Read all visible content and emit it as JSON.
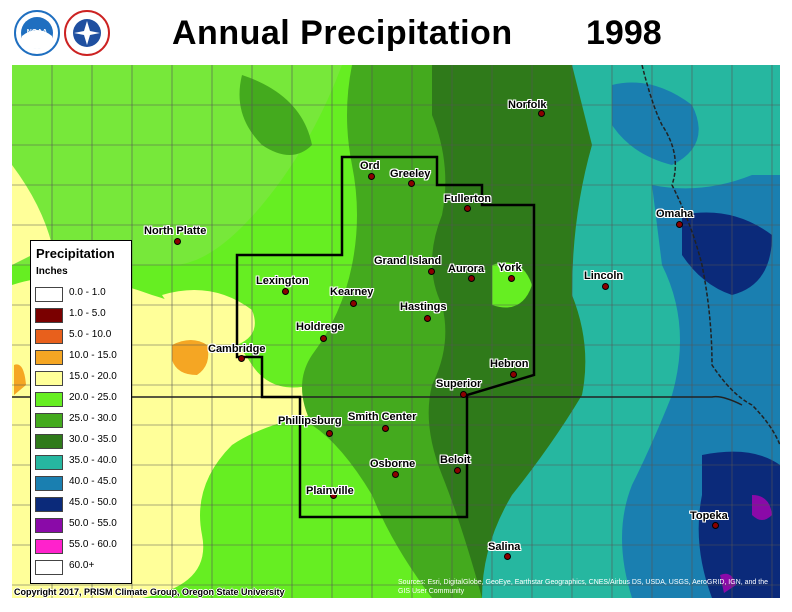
{
  "header": {
    "title": "Annual Precipitation",
    "year": "1998",
    "logos": [
      {
        "name": "noaa-logo",
        "text": "NOAA",
        "color": "#1f6fc0"
      },
      {
        "name": "nws-logo",
        "text": "NATIONAL WEATHER SERVICE",
        "color": "#cc2222"
      }
    ]
  },
  "legend": {
    "title": "Precipitation",
    "units": "Inches",
    "items": [
      {
        "label": "0.0 - 1.0",
        "color": "#ffffff"
      },
      {
        "label": "1.0 - 5.0",
        "color": "#7a0000"
      },
      {
        "label": "5.0 - 10.0",
        "color": "#e8601c"
      },
      {
        "label": "10.0 - 15.0",
        "color": "#f5a623"
      },
      {
        "label": "15.0 - 20.0",
        "color": "#ffff99"
      },
      {
        "label": "20.0 - 25.0",
        "color": "#66ee22"
      },
      {
        "label": "25.0 - 30.0",
        "color": "#44aa1e"
      },
      {
        "label": "30.0 - 35.0",
        "color": "#2f7a1a"
      },
      {
        "label": "35.0 - 40.0",
        "color": "#26b7a0"
      },
      {
        "label": "40.0 - 45.0",
        "color": "#1a7fb0"
      },
      {
        "label": "45.0 - 50.0",
        "color": "#0b2a7a"
      },
      {
        "label": "50.0 - 55.0",
        "color": "#8a0aa8"
      },
      {
        "label": "55.0 - 60.0",
        "color": "#ff22cc"
      },
      {
        "label": "60.0+",
        "color": "#ffffff"
      }
    ]
  },
  "cities": [
    {
      "name": "Norfolk"
    },
    {
      "name": "Ord"
    },
    {
      "name": "Greeley"
    },
    {
      "name": "Fullerton"
    },
    {
      "name": "Omaha"
    },
    {
      "name": "North Platte"
    },
    {
      "name": "Grand Island"
    },
    {
      "name": "Aurora"
    },
    {
      "name": "York"
    },
    {
      "name": "Lincoln"
    },
    {
      "name": "Lexington"
    },
    {
      "name": "Kearney"
    },
    {
      "name": "Hastings"
    },
    {
      "name": "Holdrege"
    },
    {
      "name": "Cambridge"
    },
    {
      "name": "Hebron"
    },
    {
      "name": "Superior"
    },
    {
      "name": "Phillipsburg"
    },
    {
      "name": "Smith Center"
    },
    {
      "name": "Beloit"
    },
    {
      "name": "Osborne"
    },
    {
      "name": "Plainville"
    },
    {
      "name": "Topeka"
    },
    {
      "name": "Salina"
    }
  ],
  "footer": {
    "copyright": "Copyright 2017, PRISM Climate Group, Oregon State University",
    "sources": "Sources: Esri, DigitalGlobe, GeoEye, Earthstar Geographics, CNES/Airbus DS, USDA, USGS, AeroGRID, IGN, and the GIS User Community"
  }
}
